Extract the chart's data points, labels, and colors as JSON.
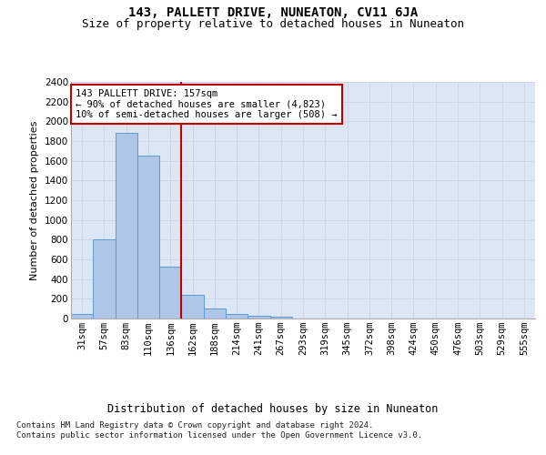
{
  "title": "143, PALLETT DRIVE, NUNEATON, CV11 6JA",
  "subtitle": "Size of property relative to detached houses in Nuneaton",
  "xlabel": "Distribution of detached houses by size in Nuneaton",
  "ylabel": "Number of detached properties",
  "bar_labels": [
    "31sqm",
    "57sqm",
    "83sqm",
    "110sqm",
    "136sqm",
    "162sqm",
    "188sqm",
    "214sqm",
    "241sqm",
    "267sqm",
    "293sqm",
    "319sqm",
    "345sqm",
    "372sqm",
    "398sqm",
    "424sqm",
    "450sqm",
    "476sqm",
    "503sqm",
    "529sqm",
    "555sqm"
  ],
  "bar_values": [
    50,
    800,
    1880,
    1650,
    530,
    240,
    100,
    50,
    30,
    15,
    0,
    0,
    0,
    0,
    0,
    0,
    0,
    0,
    0,
    0,
    0
  ],
  "bar_color": "#aec6e8",
  "bar_edge_color": "#5b9bd5",
  "vline_x_idx": 5,
  "vline_color": "#c00000",
  "annotation_text": "143 PALLETT DRIVE: 157sqm\n← 90% of detached houses are smaller (4,823)\n10% of semi-detached houses are larger (508) →",
  "annotation_box_color": "#ffffff",
  "annotation_box_edge": "#c00000",
  "ylim": [
    0,
    2400
  ],
  "yticks": [
    0,
    200,
    400,
    600,
    800,
    1000,
    1200,
    1400,
    1600,
    1800,
    2000,
    2200,
    2400
  ],
  "grid_color": "#ccd6e8",
  "bg_color": "#dce6f5",
  "footer_line1": "Contains HM Land Registry data © Crown copyright and database right 2024.",
  "footer_line2": "Contains public sector information licensed under the Open Government Licence v3.0.",
  "title_fontsize": 10,
  "subtitle_fontsize": 9,
  "xlabel_fontsize": 8.5,
  "ylabel_fontsize": 8,
  "tick_fontsize": 7.5,
  "annotation_fontsize": 7.5,
  "footer_fontsize": 6.5
}
